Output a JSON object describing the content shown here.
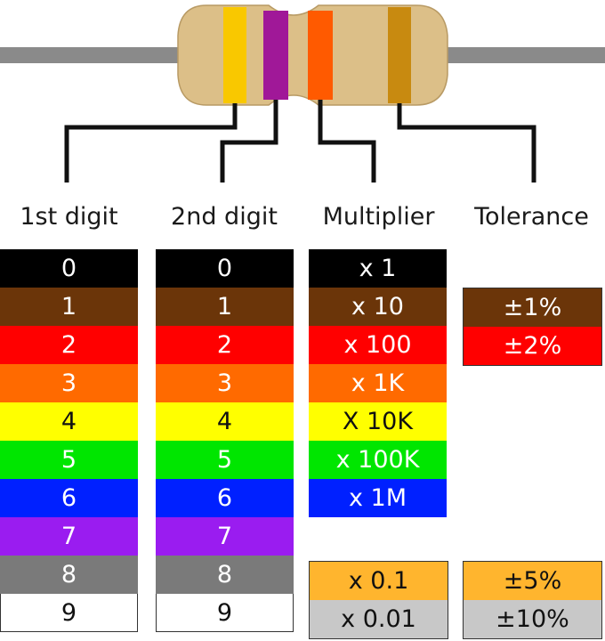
{
  "resistor": {
    "body_color": "#dcbf88",
    "lead_color": "#8a8a8a",
    "wire_color": "#111111",
    "bands": [
      {
        "name": "yellow",
        "color": "#f9c800"
      },
      {
        "name": "violet",
        "color": "#a01898"
      },
      {
        "name": "orange",
        "color": "#ff5a00"
      },
      {
        "name": "gold",
        "color": "#c88a10"
      }
    ]
  },
  "headers": {
    "digit1": "1st digit",
    "digit2": "2nd digit",
    "multiplier": "Multiplier",
    "tolerance": "Tolerance"
  },
  "digit_rows": [
    {
      "label": "0",
      "bg": "#000000",
      "fg": "#ffffff"
    },
    {
      "label": "1",
      "bg": "#6b3509",
      "fg": "#ffffff"
    },
    {
      "label": "2",
      "bg": "#ff0000",
      "fg": "#ffffff"
    },
    {
      "label": "3",
      "bg": "#ff6a00",
      "fg": "#ffffff"
    },
    {
      "label": "4",
      "bg": "#ffff00",
      "fg": "#111111"
    },
    {
      "label": "5",
      "bg": "#00e600",
      "fg": "#ffffff"
    },
    {
      "label": "6",
      "bg": "#0020ff",
      "fg": "#ffffff"
    },
    {
      "label": "7",
      "bg": "#9a1cf0",
      "fg": "#ffffff"
    },
    {
      "label": "8",
      "bg": "#7a7a7a",
      "fg": "#ffffff"
    },
    {
      "label": "9",
      "bg": "#ffffff",
      "fg": "#111111"
    }
  ],
  "multiplier_rows": [
    {
      "label": "x 1",
      "bg": "#000000",
      "fg": "#ffffff"
    },
    {
      "label": "x 10",
      "bg": "#6b3509",
      "fg": "#ffffff"
    },
    {
      "label": "x 100",
      "bg": "#ff0000",
      "fg": "#ffffff"
    },
    {
      "label": "x 1K",
      "bg": "#ff6a00",
      "fg": "#ffffff"
    },
    {
      "label": "X 10K",
      "bg": "#ffff00",
      "fg": "#111111"
    },
    {
      "label": "x 100K",
      "bg": "#00e600",
      "fg": "#ffffff"
    },
    {
      "label": "x 1M",
      "bg": "#0020ff",
      "fg": "#ffffff"
    }
  ],
  "multiplier_extra": [
    {
      "label": "x 0.1",
      "bg": "#ffb52e",
      "fg": "#111111"
    },
    {
      "label": "x 0.01",
      "bg": "#c8c8c8",
      "fg": "#111111"
    }
  ],
  "tolerance_upper": [
    {
      "label": "±1%",
      "bg": "#6b3509",
      "fg": "#ffffff"
    },
    {
      "label": "±2%",
      "bg": "#ff0000",
      "fg": "#ffffff"
    }
  ],
  "tolerance_lower": [
    {
      "label": "±5%",
      "bg": "#ffb52e",
      "fg": "#111111"
    },
    {
      "label": "±10%",
      "bg": "#c8c8c8",
      "fg": "#111111"
    }
  ]
}
